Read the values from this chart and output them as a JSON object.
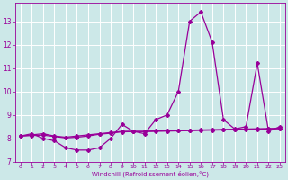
{
  "xlabel": "Windchill (Refroidissement éolien,°C)",
  "x_values": [
    0,
    1,
    2,
    3,
    4,
    5,
    6,
    7,
    8,
    9,
    10,
    11,
    12,
    13,
    14,
    15,
    16,
    17,
    18,
    19,
    20,
    21,
    22,
    23
  ],
  "line1_y": [
    8.1,
    8.2,
    8.0,
    7.9,
    7.6,
    7.5,
    7.5,
    7.6,
    8.0,
    8.6,
    8.3,
    8.2,
    8.8,
    9.0,
    10.0,
    13.0,
    13.4,
    12.1,
    8.8,
    8.4,
    8.5,
    11.2,
    8.3,
    8.5
  ],
  "line2_y": [
    8.1,
    8.15,
    8.2,
    8.1,
    8.05,
    8.1,
    8.15,
    8.2,
    8.25,
    8.3,
    8.3,
    8.3,
    8.32,
    8.33,
    8.34,
    8.35,
    8.36,
    8.37,
    8.38,
    8.39,
    8.4,
    8.41,
    8.42,
    8.43
  ],
  "line3_y": [
    8.1,
    8.12,
    8.14,
    8.08,
    8.02,
    8.05,
    8.1,
    8.18,
    8.22,
    8.28,
    8.29,
    8.29,
    8.3,
    8.31,
    8.32,
    8.33,
    8.34,
    8.35,
    8.36,
    8.37,
    8.38,
    8.39,
    8.4,
    8.41
  ],
  "line_color": "#990099",
  "bg_color": "#cce8e8",
  "grid_color": "#ffffff",
  "ylim": [
    7.0,
    13.8
  ],
  "yticks": [
    7,
    8,
    9,
    10,
    11,
    12,
    13
  ],
  "xlim": [
    -0.5,
    23.5
  ],
  "marker": "D",
  "markersize": 2.0,
  "linewidth": 0.9
}
